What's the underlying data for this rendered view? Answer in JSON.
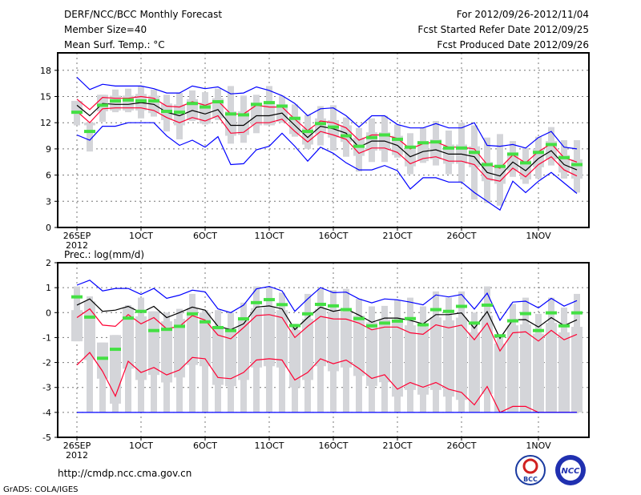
{
  "header": {
    "title": "DERF/NCC/BCC Monthly Forecast",
    "member_size": "Member Size=40",
    "variable": "Mean Surf. Temp.: °C",
    "period": "For 2012/09/26-2012/11/04",
    "started": "Fcst Started Refer Date 2012/09/25",
    "produced": "Fcst Produced Date 2012/09/26"
  },
  "footer": {
    "url": "http://cmdp.ncc.cma.gov.cn",
    "credit": "GrADS: COLA/IGES",
    "logo_left": "BCC",
    "logo_right": "NCC"
  },
  "colors": {
    "max_min": "#0000ff",
    "percentile": "#ff0033",
    "mean": "#000000",
    "marker": "#44e044",
    "box": "#d4d5d9"
  },
  "chart_data": [
    {
      "type": "line",
      "title": "Mean Surf. Temp.: °C",
      "x_labels": [
        "26SEP",
        "1OCT",
        "6OCT",
        "11OCT",
        "16OCT",
        "21OCT",
        "26OCT",
        "1NOV"
      ],
      "x_label_days": [
        0,
        5,
        10,
        15,
        20,
        25,
        30,
        36
      ],
      "year_label": "2012",
      "yticks": [
        "0",
        "3",
        "6",
        "9",
        "12",
        "15",
        "18"
      ],
      "ylim": [
        0,
        20
      ],
      "grid": true,
      "series": [
        {
          "name": "max",
          "color": "#0000ff",
          "values": [
            17.2,
            15.8,
            16.4,
            16.2,
            16.2,
            16.2,
            15.9,
            15.4,
            15.4,
            16.2,
            15.9,
            16.1,
            15.3,
            15.4,
            16.1,
            15.7,
            15.1,
            14.2,
            12.8,
            13.6,
            13.7,
            12.8,
            11.5,
            12.8,
            12.8,
            11.8,
            11.4,
            11.4,
            11.9,
            11.4,
            11.4,
            12.0,
            9.4,
            9.3,
            9.5,
            9.1,
            10.3,
            11.0,
            9.2,
            9.0
          ]
        },
        {
          "name": "upper",
          "color": "#ff0033",
          "values": [
            14.7,
            13.5,
            14.9,
            14.8,
            14.8,
            15.0,
            14.8,
            13.9,
            13.8,
            14.4,
            14.0,
            14.5,
            13.0,
            13.0,
            14.0,
            13.8,
            13.8,
            12.4,
            11.1,
            12.2,
            12.0,
            11.4,
            10.0,
            10.6,
            10.6,
            10.2,
            9.0,
            9.6,
            9.8,
            9.2,
            9.2,
            9.0,
            7.2,
            6.8,
            8.3,
            7.4,
            8.7,
            9.6,
            8.0,
            7.5
          ]
        },
        {
          "name": "mean",
          "color": "#000000",
          "values": [
            14.0,
            12.8,
            14.2,
            14.1,
            14.1,
            14.3,
            14.1,
            13.2,
            12.8,
            13.4,
            13.0,
            13.5,
            11.7,
            11.7,
            12.8,
            12.8,
            13.1,
            11.7,
            10.3,
            11.6,
            11.3,
            10.8,
            9.2,
            9.9,
            9.9,
            9.4,
            8.1,
            8.7,
            8.9,
            8.4,
            8.4,
            8.1,
            6.3,
            5.9,
            7.5,
            6.5,
            7.9,
            8.8,
            7.2,
            6.6
          ]
        },
        {
          "name": "lower",
          "color": "#ff0033",
          "values": [
            13.3,
            12.0,
            13.6,
            13.7,
            13.7,
            13.7,
            13.4,
            12.6,
            12.0,
            12.6,
            12.2,
            12.8,
            10.8,
            10.9,
            12.0,
            12.0,
            12.4,
            11.0,
            9.8,
            11.0,
            10.6,
            10.1,
            8.5,
            9.1,
            9.1,
            8.6,
            7.3,
            7.9,
            8.1,
            7.6,
            7.6,
            7.2,
            5.6,
            5.3,
            6.8,
            5.8,
            7.2,
            8.1,
            6.6,
            5.9
          ]
        },
        {
          "name": "min",
          "color": "#0000ff",
          "values": [
            10.6,
            10.0,
            11.6,
            11.6,
            12.0,
            12.0,
            12.0,
            10.5,
            9.4,
            10.0,
            9.2,
            10.4,
            7.2,
            7.3,
            8.9,
            9.3,
            10.8,
            9.3,
            7.6,
            9.2,
            8.5,
            7.4,
            6.6,
            6.6,
            7.1,
            6.5,
            4.4,
            5.7,
            5.7,
            5.2,
            5.2,
            4.0,
            3.0,
            2.0,
            5.3,
            4.0,
            5.3,
            6.3,
            5.1,
            3.9
          ]
        }
      ],
      "markers": [
        13.2,
        11.0,
        14.0,
        14.5,
        14.6,
        14.5,
        14.5,
        13.3,
        13.2,
        14.2,
        13.8,
        14.4,
        13.0,
        12.9,
        14.1,
        14.3,
        13.9,
        12.5,
        11.0,
        11.9,
        11.5,
        10.5,
        9.3,
        10.3,
        10.6,
        10.1,
        9.2,
        9.7,
        9.8,
        9.1,
        9.1,
        8.6,
        7.2,
        7.0,
        8.4,
        7.4,
        8.6,
        9.5,
        8.0,
        7.2
      ],
      "box_high": [
        14.5,
        12.0,
        15.2,
        15.8,
        15.9,
        16.2,
        15.8,
        15.2,
        15.4,
        15.7,
        15.5,
        15.9,
        16.2,
        15.1,
        15.2,
        16.2,
        15.1,
        14.1,
        12.9,
        13.9,
        14.0,
        12.6,
        11.4,
        12.5,
        12.8,
        11.8,
        10.8,
        11.4,
        12.2,
        11.1,
        12.0,
        11.7,
        10.3,
        10.7,
        9.9,
        9.1,
        10.4,
        11.5,
        10.0,
        10.0
      ],
      "box_low": [
        11.7,
        8.7,
        12.1,
        13.2,
        13.2,
        12.5,
        12.7,
        11.0,
        10.1,
        12.2,
        11.8,
        12.3,
        9.6,
        9.7,
        10.8,
        11.7,
        12.0,
        10.4,
        9.0,
        9.4,
        8.8,
        8.1,
        6.4,
        7.5,
        7.5,
        8.0,
        6.1,
        7.4,
        7.1,
        6.1,
        5.2,
        3.2,
        2.8,
        2.5,
        5.8,
        5.0,
        5.6,
        7.1,
        5.6,
        4.0
      ]
    },
    {
      "type": "line",
      "title": "Prec.: log(mm/d)",
      "x_labels": [
        "26SEP",
        "1OCT",
        "6OCT",
        "11OCT",
        "16OCT",
        "21OCT",
        "26OCT",
        "1NOV"
      ],
      "x_label_days": [
        0,
        5,
        10,
        15,
        20,
        25,
        30,
        36
      ],
      "year_label": "2012",
      "yticks": [
        "-5",
        "-4",
        "-3",
        "-2",
        "-1",
        "0",
        "1",
        "2"
      ],
      "ylim": [
        -5,
        2
      ],
      "grid": true,
      "series": [
        {
          "name": "max",
          "color": "#0000ff",
          "values": [
            1.1,
            1.3,
            0.87,
            0.97,
            0.97,
            0.73,
            0.97,
            0.57,
            0.7,
            0.9,
            0.83,
            0.15,
            0.0,
            0.3,
            0.95,
            1.05,
            0.87,
            0.05,
            0.55,
            1.0,
            0.8,
            0.82,
            0.55,
            0.39,
            0.55,
            0.51,
            0.42,
            0.31,
            0.71,
            0.63,
            0.73,
            0.14,
            0.78,
            -0.31,
            0.42,
            0.46,
            0.19,
            0.57,
            0.26,
            0.48
          ]
        },
        {
          "name": "mean",
          "color": "#000000",
          "values": [
            0.3,
            0.55,
            0.05,
            0.1,
            0.25,
            0.0,
            0.25,
            -0.2,
            0.0,
            0.22,
            0.1,
            -0.55,
            -0.68,
            -0.45,
            0.22,
            0.27,
            0.15,
            -0.68,
            -0.2,
            0.22,
            0.05,
            0.15,
            -0.1,
            -0.39,
            -0.22,
            -0.22,
            -0.31,
            -0.45,
            -0.08,
            -0.08,
            -0.01,
            -0.63,
            0.04,
            -1.03,
            -0.29,
            -0.28,
            -0.58,
            -0.2,
            -0.52,
            -0.29
          ]
        },
        {
          "name": "upper",
          "color": "#ff0033",
          "values": [
            -0.2,
            0.15,
            -0.5,
            -0.55,
            -0.08,
            -0.45,
            -0.2,
            -0.65,
            -0.55,
            -0.12,
            -0.3,
            -0.9,
            -1.05,
            -0.6,
            -0.12,
            -0.08,
            -0.2,
            -1.0,
            -0.55,
            -0.15,
            -0.25,
            -0.26,
            -0.42,
            -0.69,
            -0.58,
            -0.58,
            -0.81,
            -0.87,
            -0.49,
            -0.61,
            -0.5,
            -1.09,
            -0.42,
            -1.54,
            -0.81,
            -0.77,
            -1.14,
            -0.71,
            -1.09,
            -0.87
          ]
        },
        {
          "name": "lower",
          "color": "#ff0033",
          "values": [
            -2.1,
            -1.6,
            -2.35,
            -3.35,
            -1.95,
            -2.4,
            -2.2,
            -2.5,
            -2.3,
            -1.8,
            -1.85,
            -2.6,
            -2.65,
            -2.4,
            -1.9,
            -1.85,
            -1.9,
            -2.7,
            -2.4,
            -1.85,
            -2.05,
            -1.9,
            -2.24,
            -2.64,
            -2.49,
            -3.07,
            -2.8,
            -2.99,
            -2.8,
            -3.07,
            -3.2,
            -3.7,
            -2.96,
            -4.0,
            -3.76,
            -3.76,
            -4.0,
            -4.0,
            -4.0,
            -4.0
          ]
        },
        {
          "name": "min",
          "color": "#0000ff",
          "values": [
            -4,
            -4,
            -4,
            -4,
            -4,
            -4,
            -4,
            -4,
            -4,
            -4,
            -4,
            -4,
            -4,
            -4,
            -4,
            -4,
            -4,
            -4,
            -4,
            -4,
            -4,
            -4,
            -4,
            -4,
            -4,
            -4,
            -4,
            -4,
            -4,
            -4,
            -4,
            -4,
            -4,
            -4,
            -4,
            -4,
            -4,
            -4,
            -4,
            -4
          ]
        }
      ],
      "markers": [
        0.63,
        -0.18,
        -1.83,
        -1.47,
        -0.22,
        0.05,
        -0.72,
        -0.67,
        -0.55,
        -0.05,
        -0.37,
        -0.6,
        -0.72,
        -0.25,
        0.4,
        0.52,
        0.32,
        -0.52,
        -0.05,
        0.33,
        0.27,
        0.12,
        -0.24,
        -0.53,
        -0.42,
        -0.34,
        -0.24,
        -0.49,
        0.12,
        0.05,
        0.25,
        -0.42,
        0.3,
        -0.93,
        -0.33,
        -0.04,
        -0.72,
        -0.01,
        -0.53,
        -0.01
      ],
      "box_high": [
        1.05,
        0.65,
        -1.2,
        -0.9,
        0.3,
        0.6,
        0.05,
        0.0,
        0.15,
        0.75,
        0.1,
        0.1,
        0.0,
        0.4,
        1.05,
        1.0,
        0.8,
        -0.45,
        0.75,
        0.95,
        0.9,
        0.95,
        0.55,
        0.25,
        0.27,
        0.5,
        0.6,
        0.25,
        0.85,
        0.6,
        0.85,
        0.0,
        1.05,
        -0.9,
        0.35,
        0.6,
        -0.05,
        0.6,
        0.2,
        0.75
      ],
      "box_low": [
        -1.15,
        -4,
        -4,
        -4,
        -4,
        -4,
        -4,
        -4,
        -4,
        -4,
        -4,
        -4,
        -4,
        -4,
        -4,
        -4,
        -4,
        -4,
        -4,
        -4,
        -4,
        -4,
        -4,
        -4,
        -4,
        -4,
        -4,
        -4,
        -4,
        -4,
        -4,
        -4,
        -4,
        -4,
        -4,
        -4,
        -4,
        -4,
        -4,
        -4
      ]
    }
  ]
}
